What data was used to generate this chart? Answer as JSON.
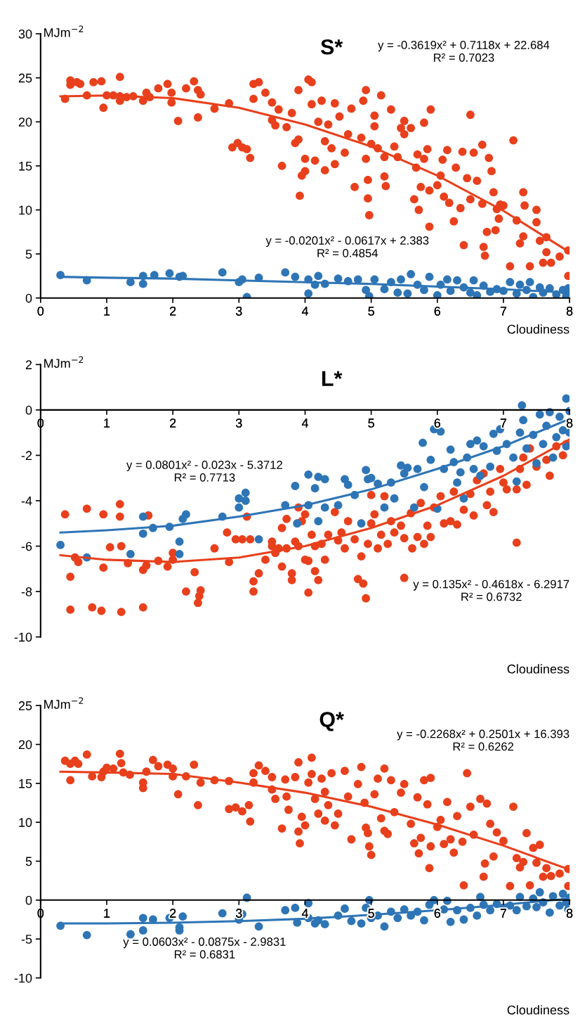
{
  "chart_data": [
    {
      "type": "scatter",
      "title": "S*",
      "ylabel": "MJm$^{−2}$",
      "xlabel": "Cloudiness",
      "xlim": [
        0,
        8
      ],
      "xticks": [
        0,
        1,
        2,
        3,
        4,
        5,
        6,
        7,
        8
      ],
      "ylim": [
        0,
        30
      ],
      "yticks": [
        0,
        5,
        10,
        15,
        20,
        25,
        30
      ],
      "grid": false,
      "legend": false,
      "annotations": [
        "y = -0.3619x² + 0.7118x + 22.684\nR² = 0.7023",
        "y = -0.0201x² - 0.0617x + 2.383\nR² = 0.4854"
      ],
      "series": [
        {
          "color": "#e8401c",
          "x": [
            0.37,
            0.45,
            0.45,
            0.55,
            0.6,
            0.7,
            0.8,
            0.92,
            0.95,
            1.0,
            1.1,
            1.2,
            1.2,
            1.2,
            1.3,
            1.4,
            1.55,
            1.6,
            1.65,
            1.78,
            1.92,
            1.98,
            1.98,
            2.08,
            2.2,
            2.32,
            2.38,
            2.38,
            2.42,
            2.63,
            2.85,
            2.9,
            2.98,
            3.05,
            3.12,
            3.17,
            3.22,
            3.22,
            3.3,
            3.4,
            3.5,
            3.5,
            3.55,
            3.6,
            3.65,
            3.72,
            3.8,
            3.85,
            3.9,
            3.9,
            3.92,
            3.95,
            4.0,
            4.0,
            4.05,
            4.1,
            4.1,
            4.15,
            4.2,
            4.25,
            4.3,
            4.3,
            4.35,
            4.4,
            4.45,
            4.45,
            4.52,
            4.6,
            4.65,
            4.7,
            4.75,
            4.85,
            4.88,
            4.92,
            4.92,
            4.95,
            4.95,
            4.97,
            5.0,
            5.05,
            5.05,
            5.1,
            5.15,
            5.2,
            5.2,
            5.22,
            5.3,
            5.35,
            5.4,
            5.45,
            5.5,
            5.5,
            5.6,
            5.65,
            5.68,
            5.7,
            5.72,
            5.75,
            5.8,
            5.8,
            5.85,
            5.88,
            5.88,
            5.9,
            6.0,
            6.05,
            6.08,
            6.1,
            6.15,
            6.18,
            6.25,
            6.28,
            6.35,
            6.38,
            6.4,
            6.45,
            6.5,
            6.5,
            6.55,
            6.6,
            6.68,
            6.68,
            6.7,
            6.72,
            6.75,
            6.78,
            6.82,
            6.85,
            6.88,
            6.9,
            6.93,
            6.95,
            7.0,
            7.1,
            7.15,
            7.2,
            7.25,
            7.3,
            7.3,
            7.32,
            7.4,
            7.5,
            7.5,
            7.55,
            7.6,
            7.65,
            7.65,
            7.72,
            7.85,
            7.98,
            7.98
          ],
          "values": [
            22.6,
            24.7,
            24.2,
            24.5,
            24.3,
            23.0,
            24.5,
            24.6,
            21.6,
            23.0,
            23.0,
            25.1,
            22.9,
            22.4,
            22.8,
            22.9,
            22.4,
            23.3,
            22.8,
            23.8,
            24.3,
            23.3,
            22.2,
            20.1,
            23.8,
            24.6,
            20.5,
            23.6,
            23.1,
            21.5,
            22.1,
            17.1,
            17.6,
            17.1,
            16.9,
            15.9,
            22.6,
            24.3,
            24.5,
            23.3,
            22.2,
            20.2,
            19.6,
            21.4,
            15.0,
            19.4,
            21.0,
            17.6,
            23.6,
            18.0,
            11.6,
            13.9,
            15.8,
            14.4,
            24.8,
            24.5,
            22.0,
            15.6,
            20.0,
            22.4,
            17.8,
            14.5,
            19.7,
            17.0,
            22.1,
            15.2,
            20.6,
            16.5,
            18.6,
            21.5,
            12.6,
            18.2,
            22.4,
            23.6,
            15.8,
            13.4,
            11.3,
            9.4,
            17.5,
            19.5,
            20.7,
            17.0,
            23.0,
            16.0,
            13.8,
            12.7,
            21.4,
            17.2,
            16.0,
            19.3,
            20.1,
            18.6,
            19.3,
            11.2,
            14.8,
            16.3,
            10.0,
            12.6,
            19.9,
            15.8,
            16.9,
            12.2,
            8.1,
            21.4,
            12.8,
            13.9,
            15.7,
            11.5,
            16.8,
            10.8,
            8.7,
            14.8,
            10.2,
            16.6,
            6.0,
            13.6,
            20.8,
            11.2,
            16.5,
            13.3,
            17.4,
            10.7,
            5.8,
            4.8,
            7.5,
            15.9,
            14.4,
            12.0,
            7.7,
            10.1,
            9.0,
            10.6,
            10.5,
            3.6,
            17.9,
            8.8,
            6.2,
            7.0,
            12.0,
            10.5,
            3.6,
            10.0,
            8.6,
            6.5,
            4.0,
            5.2,
            6.9,
            4.0,
            4.7,
            5.4,
            2.5
          ]
        },
        {
          "color": "#2e75b6",
          "x": [
            0.3,
            0.7,
            1.36,
            1.55,
            1.55,
            1.72,
            1.95,
            2.1,
            2.15,
            2.75,
            3.0,
            3.05,
            3.12,
            3.3,
            3.7,
            3.85,
            4.05,
            4.05,
            4.15,
            4.2,
            4.3,
            4.5,
            4.65,
            4.8,
            4.92,
            4.97,
            5.05,
            5.2,
            5.3,
            5.4,
            5.45,
            5.55,
            5.6,
            5.7,
            5.8,
            5.88,
            6.0,
            6.05,
            6.15,
            6.2,
            6.3,
            6.4,
            6.5,
            6.55,
            6.6,
            6.7,
            6.8,
            6.9,
            7.0,
            7.1,
            7.2,
            7.25,
            7.35,
            7.4,
            7.45,
            7.55,
            7.6,
            7.7,
            7.8,
            7.9,
            7.95,
            8.0,
            7.98
          ],
          "values": [
            2.6,
            2.0,
            1.8,
            2.5,
            1.6,
            2.6,
            2.8,
            2.4,
            2.5,
            2.9,
            1.8,
            2.1,
            0.1,
            2.3,
            2.9,
            2.4,
            0.5,
            2.1,
            1.5,
            2.5,
            1.6,
            2.2,
            1.9,
            2.1,
            0.9,
            0.2,
            2.1,
            1.0,
            1.8,
            0.6,
            2.1,
            0.5,
            2.7,
            1.5,
            0.9,
            2.4,
            0.3,
            1.5,
            2.1,
            0.8,
            2.0,
            1.2,
            0.6,
            2.0,
            0.3,
            1.4,
            0.7,
            1.0,
            0.8,
            1.8,
            0.5,
            1.5,
            0.9,
            1.8,
            0.1,
            1.2,
            0.6,
            1.1,
            0.4,
            0.9,
            0.2,
            0.7,
            1.1
          ]
        },
        {
          "type": "line",
          "marker": "none",
          "color": "#e8401c",
          "x": [
            0.3,
            1,
            2,
            3,
            4,
            5,
            6,
            7,
            8
          ],
          "values": [
            22.9,
            23.0,
            22.7,
            21.6,
            19.7,
            17.2,
            13.9,
            9.9,
            5.2
          ]
        },
        {
          "type": "line",
          "marker": "none",
          "color": "#2e75b6",
          "x": [
            0.3,
            1,
            2,
            3,
            4,
            5,
            6,
            7,
            8
          ],
          "values": [
            2.4,
            2.3,
            2.2,
            2.0,
            1.8,
            1.6,
            1.3,
            1.0,
            0.6
          ]
        }
      ]
    },
    {
      "type": "scatter",
      "title": "L*",
      "ylabel": "MJm$^{−2}$",
      "xlabel": "Cloudiness",
      "xlim": [
        0,
        8
      ],
      "xticks": [
        0,
        1,
        2,
        3,
        4,
        5,
        6,
        7,
        8
      ],
      "ylim": [
        -10,
        2
      ],
      "yticks": [
        -10,
        -8,
        -6,
        -4,
        -2,
        0,
        2
      ],
      "grid": false,
      "legend": false,
      "annotations": [
        "y = 0.0801x² - 0.023x - 5.3712\nR² = 0.7713",
        "y = 0.135x² - 0.4618x - 6.2917\nR² = 0.6732"
      ],
      "series": [
        {
          "color": "#e8401c",
          "x": [
            0.37,
            0.45,
            0.45,
            0.52,
            0.57,
            0.7,
            0.78,
            0.92,
            0.95,
            0.95,
            1.05,
            1.2,
            1.2,
            1.22,
            1.22,
            1.32,
            1.55,
            1.55,
            1.6,
            1.63,
            1.78,
            1.92,
            2.0,
            2.0,
            2.2,
            2.33,
            2.38,
            2.4,
            2.42,
            2.63,
            2.82,
            2.85,
            2.95,
            3.05,
            3.12,
            3.17,
            3.22,
            3.22,
            3.3,
            3.4,
            3.5,
            3.5,
            3.55,
            3.6,
            3.65,
            3.65,
            3.72,
            3.72,
            3.8,
            3.8,
            3.85,
            3.9,
            3.9,
            3.95,
            4.0,
            4.0,
            4.05,
            4.05,
            4.1,
            4.15,
            4.15,
            4.2,
            4.25,
            4.3,
            4.35,
            4.45,
            4.5,
            4.55,
            4.6,
            4.65,
            4.75,
            4.8,
            4.85,
            4.88,
            4.92,
            4.95,
            5.0,
            5.0,
            5.05,
            5.1,
            5.15,
            5.2,
            5.25,
            5.3,
            5.35,
            5.45,
            5.5,
            5.5,
            5.6,
            5.62,
            5.7,
            5.75,
            5.8,
            5.85,
            5.9,
            5.95,
            6.05,
            6.1,
            6.2,
            6.25,
            6.3,
            6.4,
            6.5,
            6.55,
            6.6,
            6.7,
            6.75,
            6.8,
            6.85,
            6.95,
            7.0,
            7.05,
            7.2,
            7.2,
            7.25,
            7.3,
            7.35,
            7.4,
            7.5,
            7.65,
            7.7,
            7.8,
            7.9,
            7.95
          ],
          "values": [
            -4.6,
            -7.35,
            -8.8,
            -6.5,
            -6.7,
            -4.35,
            -8.7,
            -8.85,
            -4.6,
            -6.95,
            -6.05,
            -4.15,
            -4.7,
            -8.9,
            -6.0,
            -6.75,
            -8.7,
            -7.05,
            -6.85,
            -4.65,
            -6.65,
            -6.9,
            -6.3,
            -6.6,
            -8.0,
            -7.15,
            -8.5,
            -8.2,
            -7.95,
            -6.1,
            -5.4,
            -6.7,
            -5.7,
            -5.7,
            -4.7,
            -5.7,
            -7.55,
            -8.0,
            -7.2,
            -6.6,
            -6.0,
            -5.8,
            -6.3,
            -6.1,
            -5.2,
            -6.9,
            -6.1,
            -4.8,
            -7.2,
            -7.5,
            -5.8,
            -6.0,
            -4.3,
            -4.9,
            -6.6,
            -4.6,
            -8.05,
            -6.65,
            -5.5,
            -7.1,
            -6.0,
            -7.5,
            -5.9,
            -6.6,
            -5.5,
            -4.5,
            -5.75,
            -5.4,
            -6.1,
            -4.9,
            -5.7,
            -7.45,
            -6.45,
            -7.65,
            -8.3,
            -5.9,
            -5.0,
            -3.75,
            -4.6,
            -6.1,
            -5.5,
            -3.8,
            -5.9,
            -4.9,
            -5.4,
            -5.1,
            -5.65,
            -7.4,
            -4.55,
            -6.1,
            -5.6,
            -4.1,
            -5.9,
            -5.1,
            -5.6,
            -4.3,
            -3.8,
            -5.0,
            -4.9,
            -3.6,
            -5.05,
            -4.4,
            -3.7,
            -4.65,
            -3.1,
            -2.8,
            -4.2,
            -3.6,
            -4.5,
            -2.6,
            -3.2,
            -3.5,
            -5.85,
            -3.5,
            -2.6,
            -2.1,
            -3.3,
            -1.7,
            -2.5,
            -2.2,
            -2.9,
            -1.6,
            -2.0,
            -1.5
          ]
        },
        {
          "color": "#2e75b6",
          "x": [
            0.3,
            0.7,
            1.36,
            1.55,
            1.55,
            1.7,
            1.95,
            2.1,
            2.1,
            2.15,
            2.2,
            2.75,
            3.0,
            3.0,
            3.1,
            3.1,
            3.3,
            3.7,
            3.85,
            3.88,
            4.05,
            4.05,
            4.15,
            4.2,
            4.2,
            4.3,
            4.3,
            4.5,
            4.6,
            4.65,
            4.75,
            4.85,
            4.92,
            4.95,
            5.0,
            5.1,
            5.2,
            5.3,
            5.35,
            5.45,
            5.5,
            5.55,
            5.65,
            5.7,
            5.78,
            5.8,
            5.9,
            5.95,
            6.05,
            6.0,
            6.1,
            6.2,
            6.25,
            6.3,
            6.35,
            6.4,
            6.45,
            6.5,
            6.55,
            6.6,
            6.65,
            6.7,
            6.8,
            6.85,
            6.9,
            6.95,
            7.05,
            7.15,
            7.2,
            7.25,
            7.28,
            7.3,
            7.35,
            7.45,
            7.5,
            7.55,
            7.6,
            7.65,
            7.7,
            7.75,
            7.8,
            7.85,
            7.9,
            7.95,
            7.95,
            8.0,
            8.0
          ],
          "values": [
            -5.95,
            -6.5,
            -6.35,
            -4.7,
            -5.45,
            -5.2,
            -5.15,
            -5.8,
            -6.35,
            -4.8,
            -4.6,
            -4.7,
            -4.3,
            -3.9,
            -3.65,
            -4.0,
            -5.7,
            -4.2,
            -3.35,
            -5.0,
            -2.85,
            -4.2,
            -3.45,
            -2.95,
            -4.9,
            -3.05,
            -4.3,
            -4.2,
            -3.05,
            -3.3,
            -3.75,
            -5.0,
            -2.65,
            -3.05,
            -3.0,
            -3.25,
            -4.3,
            -3.2,
            -3.9,
            -2.45,
            -2.8,
            -2.55,
            -4.3,
            -2.6,
            -1.45,
            -3.4,
            -2.2,
            -0.85,
            -0.95,
            -4.35,
            -2.6,
            -1.75,
            -2.3,
            -3.2,
            -2.75,
            -3.9,
            -2.1,
            -1.5,
            -2.6,
            -1.35,
            -2.9,
            -1.6,
            -2.5,
            -1.05,
            -1.8,
            -0.85,
            -1.5,
            -2.1,
            -3.15,
            -1.0,
            0.2,
            -0.45,
            -1.7,
            -1.1,
            -2.35,
            -0.2,
            -1.5,
            -0.7,
            -0.1,
            -2.1,
            -1.2,
            -0.3,
            -0.9,
            0.5,
            -1.6,
            -0.05,
            -1.0
          ]
        },
        {
          "type": "line",
          "marker": "none",
          "color": "#e8401c",
          "x": [
            0.3,
            1,
            2,
            3,
            4,
            5,
            6,
            7,
            8
          ],
          "values": [
            -6.4,
            -6.6,
            -6.7,
            -6.5,
            -6.0,
            -5.2,
            -4.2,
            -2.9,
            -1.3
          ]
        },
        {
          "type": "line",
          "marker": "none",
          "color": "#2e75b6",
          "x": [
            0.3,
            1,
            2,
            3,
            4,
            5,
            6,
            7,
            8
          ],
          "values": [
            -5.4,
            -5.3,
            -5.1,
            -4.7,
            -4.2,
            -3.5,
            -2.6,
            -1.6,
            -0.4
          ]
        }
      ]
    },
    {
      "type": "scatter",
      "title": "Q*",
      "ylabel": "MJm$^{−2}$",
      "xlabel": "Cloudiness",
      "xlim": [
        0,
        8
      ],
      "xticks": [
        0,
        1,
        2,
        3,
        4,
        5,
        6,
        7,
        8
      ],
      "ylim": [
        -10,
        25
      ],
      "yticks": [
        -10,
        -5,
        0,
        5,
        10,
        15,
        20,
        25
      ],
      "grid": false,
      "legend": false,
      "annotations": [
        "y = -0.2268x² + 0.2501x + 16.393\nR² = 0.6262",
        "y = 0.0603x² - 0.0875x - 2.9831\nR² = 0.6831"
      ],
      "series": [
        {
          "color": "#e8401c",
          "x": [
            0.37,
            0.45,
            0.45,
            0.52,
            0.57,
            0.7,
            0.78,
            0.92,
            0.95,
            1.0,
            1.1,
            1.2,
            1.22,
            1.25,
            1.35,
            1.55,
            1.55,
            1.6,
            1.7,
            1.78,
            1.92,
            2.0,
            2.0,
            2.08,
            2.2,
            2.32,
            2.38,
            2.42,
            2.63,
            2.85,
            2.85,
            2.95,
            3.05,
            3.15,
            3.17,
            3.22,
            3.22,
            3.3,
            3.4,
            3.5,
            3.5,
            3.55,
            3.65,
            3.7,
            3.72,
            3.75,
            3.85,
            3.9,
            3.9,
            3.92,
            3.95,
            4.0,
            4.05,
            4.1,
            4.1,
            4.15,
            4.2,
            4.25,
            4.3,
            4.3,
            4.35,
            4.4,
            4.45,
            4.5,
            4.6,
            4.65,
            4.7,
            4.8,
            4.85,
            4.9,
            4.92,
            4.95,
            4.97,
            5.0,
            5.05,
            5.1,
            5.15,
            5.2,
            5.2,
            5.25,
            5.3,
            5.35,
            5.45,
            5.5,
            5.6,
            5.65,
            5.7,
            5.72,
            5.75,
            5.8,
            5.85,
            5.88,
            5.9,
            5.9,
            6.0,
            6.05,
            6.1,
            6.15,
            6.2,
            6.25,
            6.3,
            6.38,
            6.4,
            6.45,
            6.5,
            6.55,
            6.65,
            6.7,
            6.72,
            6.75,
            6.8,
            6.85,
            6.9,
            7.0,
            7.1,
            7.15,
            7.2,
            7.25,
            7.3,
            7.35,
            7.4,
            7.45,
            7.5,
            7.55,
            7.6,
            7.65,
            7.72,
            7.85,
            7.98,
            7.98
          ],
          "values": [
            17.9,
            15.4,
            17.5,
            17.9,
            17.5,
            18.7,
            15.9,
            15.8,
            16.5,
            17.0,
            16.9,
            18.8,
            17.6,
            16.4,
            16.1,
            15.1,
            14.4,
            16.5,
            18.0,
            17.2,
            17.4,
            16.9,
            15.9,
            13.6,
            15.9,
            17.4,
            12.2,
            15.1,
            15.4,
            15.3,
            11.7,
            11.9,
            11.4,
            12.2,
            10.1,
            15.1,
            16.3,
            17.3,
            16.6,
            15.8,
            14.2,
            13.0,
            9.2,
            15.5,
            13.3,
            11.6,
            15.8,
            17.7,
            8.8,
            7.3,
            10.7,
            9.6,
            15.1,
            18.3,
            16.2,
            13.0,
            11.1,
            15.6,
            13.9,
            10.2,
            12.2,
            16.3,
            9.6,
            11.1,
            16.6,
            13.3,
            7.8,
            14.9,
            17.1,
            12.5,
            9.3,
            8.6,
            6.9,
            5.8,
            13.6,
            15.6,
            10.5,
            16.9,
            8.9,
            8.5,
            15.4,
            11.3,
            13.8,
            14.9,
            9.8,
            7.3,
            13.2,
            6.0,
            8.0,
            15.4,
            12.3,
            4.1,
            15.7,
            6.9,
            9.4,
            10.3,
            7.2,
            12.6,
            7.8,
            6.1,
            10.8,
            7.5,
            1.9,
            16.3,
            12.0,
            8.4,
            13.0,
            3.0,
            4.7,
            12.4,
            9.8,
            5.6,
            8.7,
            7.6,
            1.8,
            12.0,
            5.4,
            4.2,
            4.9,
            8.6,
            1.9,
            6.7,
            4.8,
            7.1,
            3.0,
            4.1,
            3.1,
            3.4,
            4.0,
            1.8
          ]
        },
        {
          "color": "#2e75b6",
          "x": [
            0.3,
            0.7,
            1.36,
            1.55,
            1.55,
            1.7,
            1.95,
            2.1,
            2.1,
            2.15,
            2.75,
            3.0,
            3.05,
            3.12,
            3.3,
            3.7,
            3.85,
            3.88,
            4.05,
            4.05,
            4.15,
            4.2,
            4.3,
            4.5,
            4.6,
            4.7,
            4.85,
            4.92,
            4.97,
            5.0,
            5.1,
            5.2,
            5.3,
            5.4,
            5.5,
            5.6,
            5.7,
            5.8,
            5.88,
            5.95,
            6.0,
            6.1,
            6.15,
            6.2,
            6.3,
            6.4,
            6.5,
            6.6,
            6.65,
            6.7,
            6.8,
            6.9,
            7.0,
            7.1,
            7.2,
            7.25,
            7.35,
            7.45,
            7.5,
            7.55,
            7.6,
            7.7,
            7.75,
            7.85,
            7.9,
            7.95,
            8.0,
            7.98
          ],
          "values": [
            -3.3,
            -4.5,
            -4.4,
            -2.3,
            -3.9,
            -2.5,
            -2.3,
            -3.5,
            -3.9,
            -2.1,
            -1.7,
            -2.5,
            -1.8,
            0.3,
            -3.4,
            -1.3,
            -1.0,
            -2.9,
            -0.4,
            -2.3,
            -3.0,
            -2.6,
            -3.1,
            -2.0,
            -1.1,
            -2.7,
            -3.0,
            -1.0,
            0.0,
            -2.3,
            -2.0,
            -3.4,
            -1.5,
            -2.3,
            -1.2,
            -2.0,
            -1.5,
            -2.6,
            -0.6,
            0.0,
            -1.8,
            -1.2,
            -0.1,
            -2.8,
            -1.3,
            -2.5,
            -1.0,
            -2.0,
            0.4,
            -0.6,
            -1.3,
            -0.5,
            -1.0,
            -0.7,
            -1.3,
            0.4,
            -0.8,
            0.2,
            -0.9,
            1.0,
            -0.3,
            -1.6,
            0.5,
            -0.7,
            0.8,
            -0.3,
            0.3,
            -1.2
          ]
        },
        {
          "type": "line",
          "marker": "none",
          "color": "#e8401c",
          "x": [
            0.3,
            1,
            2,
            3,
            4,
            5,
            6,
            7,
            8
          ],
          "values": [
            16.5,
            16.4,
            16.2,
            15.1,
            13.8,
            12.0,
            9.7,
            7.0,
            3.9
          ]
        },
        {
          "type": "line",
          "marker": "none",
          "color": "#2e75b6",
          "x": [
            0.3,
            1,
            2,
            3,
            4,
            5,
            6,
            7,
            8
          ],
          "values": [
            -3.0,
            -3.0,
            -2.9,
            -2.7,
            -2.4,
            -1.9,
            -1.3,
            -0.6,
            0.2
          ]
        }
      ]
    }
  ]
}
